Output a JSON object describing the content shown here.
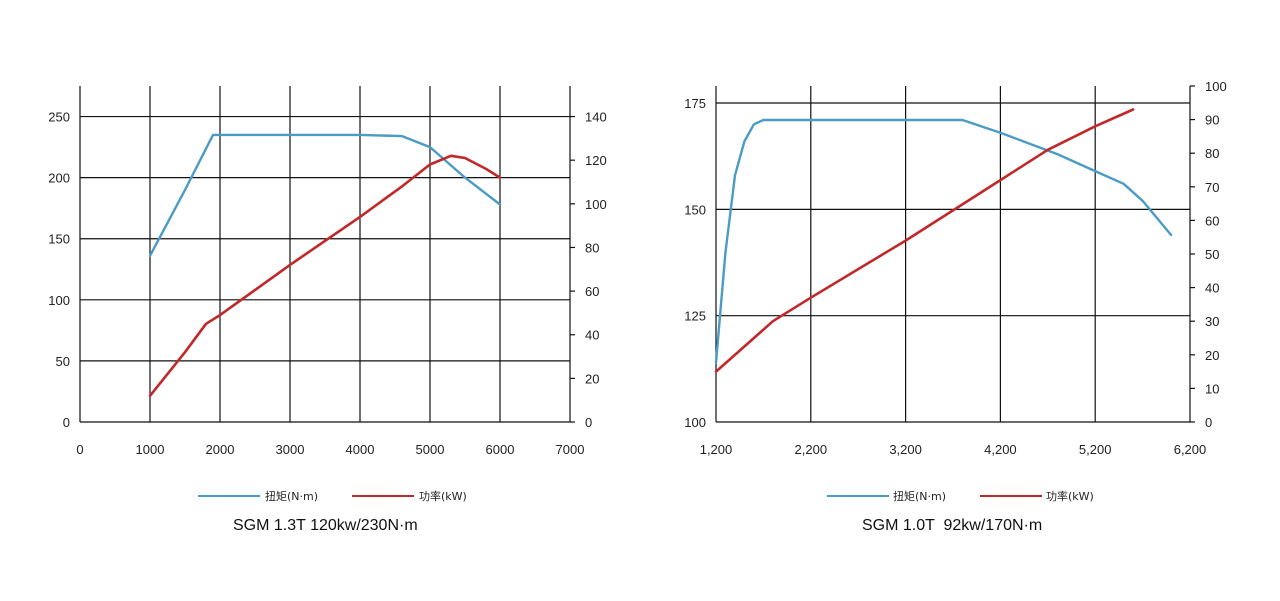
{
  "chart_data": [
    {
      "type": "line",
      "title": "SGM 1.3T 120kw/230N·m",
      "x": [
        1000,
        1500,
        1900,
        2000,
        3000,
        4000,
        4600,
        5000,
        5500,
        6000
      ],
      "x_ticks": [
        "0",
        "1000",
        "2000",
        "3000",
        "4000",
        "5000",
        "6000",
        "7000"
      ],
      "xlim": [
        0,
        7000
      ],
      "y_left_ticks": [
        "0",
        "50",
        "100",
        "150",
        "200",
        "250"
      ],
      "ylim_left": [
        0,
        275
      ],
      "y_right_ticks": [
        "0",
        "20",
        "40",
        "60",
        "80",
        "100",
        "120",
        "140"
      ],
      "ylim_right": [
        0,
        154
      ],
      "grid": true,
      "legend_position": "bottom",
      "series": [
        {
          "name": "扭矩(N·m)",
          "axis": "left",
          "color": "#4a9cc5",
          "points": [
            [
              1000,
              136
            ],
            [
              1500,
              190
            ],
            [
              1900,
              235
            ],
            [
              2000,
              235
            ],
            [
              3000,
              235
            ],
            [
              4000,
              235
            ],
            [
              4600,
              234
            ],
            [
              5000,
              225
            ],
            [
              5500,
              200
            ],
            [
              6000,
              178
            ]
          ]
        },
        {
          "name": "功率(kW)",
          "axis": "right",
          "color": "#c0282a",
          "points": [
            [
              1000,
              12
            ],
            [
              1500,
              32
            ],
            [
              1800,
              45
            ],
            [
              2000,
              49
            ],
            [
              3000,
              72
            ],
            [
              4000,
              94
            ],
            [
              4600,
              108
            ],
            [
              5000,
              118
            ],
            [
              5300,
              122
            ],
            [
              5500,
              121
            ],
            [
              5800,
              116
            ],
            [
              6000,
              112
            ]
          ]
        }
      ]
    },
    {
      "type": "line",
      "title": "SGM 1.0T  92kw/170N·m",
      "x_ticks": [
        "1,200",
        "2,200",
        "3,200",
        "4,200",
        "5,200",
        "6,200"
      ],
      "xlim": [
        1200,
        6200
      ],
      "y_left_ticks": [
        "100",
        "125",
        "150",
        "175"
      ],
      "ylim_left": [
        100,
        179
      ],
      "y_right_ticks": [
        "0",
        "10",
        "20",
        "30",
        "40",
        "50",
        "60",
        "70",
        "80",
        "90",
        "100"
      ],
      "ylim_right": [
        0,
        100
      ],
      "grid": true,
      "legend_position": "bottom",
      "series": [
        {
          "name": "扭矩(N·m)",
          "axis": "left",
          "color": "#4a9cc5",
          "points": [
            [
              1200,
              114
            ],
            [
              1300,
              140
            ],
            [
              1400,
              158
            ],
            [
              1500,
              166
            ],
            [
              1600,
              170
            ],
            [
              1700,
              171
            ],
            [
              2200,
              171
            ],
            [
              3200,
              171
            ],
            [
              3800,
              171
            ],
            [
              4200,
              168
            ],
            [
              4800,
              163
            ],
            [
              5200,
              159
            ],
            [
              5500,
              156
            ],
            [
              5700,
              152
            ],
            [
              6000,
              144
            ]
          ]
        },
        {
          "name": "功率(kW)",
          "axis": "right",
          "color": "#c0282a",
          "points": [
            [
              1200,
              15
            ],
            [
              1800,
              30
            ],
            [
              2200,
              37
            ],
            [
              3200,
              54
            ],
            [
              4200,
              72
            ],
            [
              4700,
              81
            ],
            [
              5200,
              88
            ],
            [
              5600,
              93
            ]
          ]
        }
      ]
    }
  ]
}
